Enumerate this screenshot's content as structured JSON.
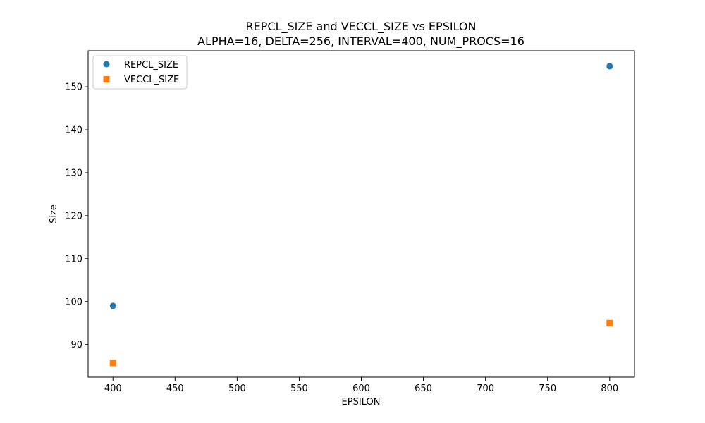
{
  "chart_data": {
    "type": "scatter",
    "title": "REPCL_SIZE and VECCL_SIZE vs EPSILON",
    "subtitle": "ALPHA=16, DELTA=256, INTERVAL=400, NUM_PROCS=16",
    "xlabel": "EPSILON",
    "ylabel": "Size",
    "xlim": [
      380,
      820
    ],
    "ylim": [
      82.4,
      158.4
    ],
    "x_ticks": [
      400,
      450,
      500,
      550,
      600,
      650,
      700,
      750,
      800
    ],
    "y_ticks": [
      90,
      100,
      110,
      120,
      130,
      140,
      150
    ],
    "grid": false,
    "legend_position": "top-left",
    "series": [
      {
        "name": "REPCL_SIZE",
        "marker": "circle",
        "color": "#1f77b4",
        "x": [
          400,
          800
        ],
        "y": [
          99,
          154.8
        ]
      },
      {
        "name": "VECCL_SIZE",
        "marker": "square",
        "color": "#ff7f0e",
        "x": [
          400,
          800
        ],
        "y": [
          85.7,
          95
        ]
      }
    ]
  }
}
